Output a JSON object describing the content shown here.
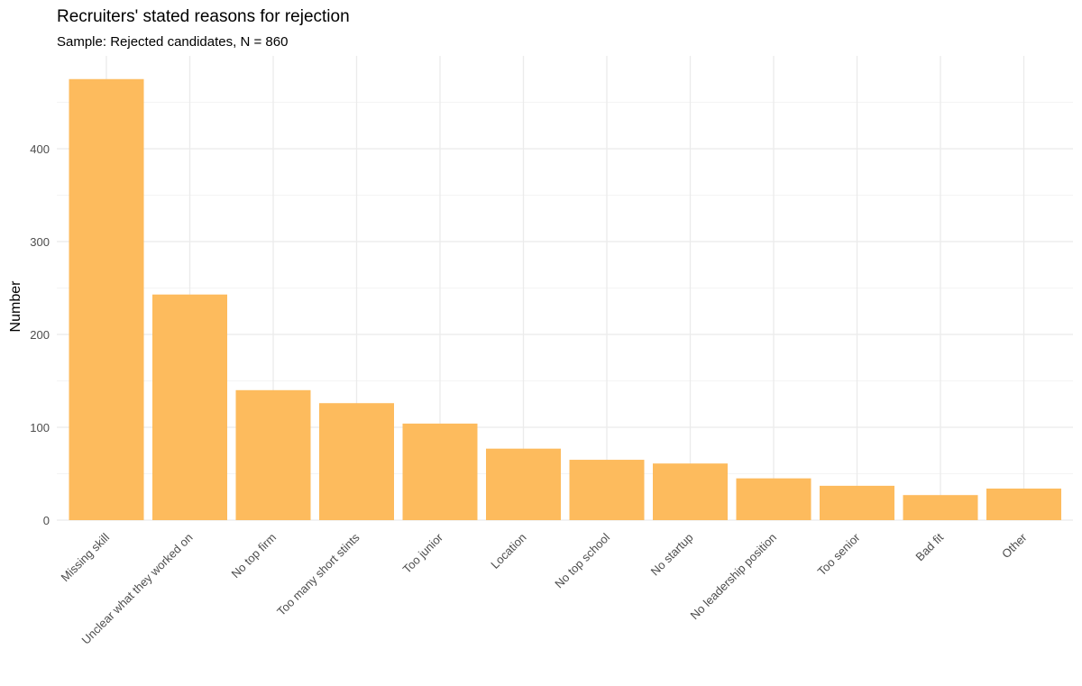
{
  "chart_data": {
    "type": "bar",
    "title": "Recruiters' stated reasons for rejection",
    "subtitle": "Sample: Rejected candidates, N = 860",
    "xlabel": "",
    "ylabel": "Number",
    "categories": [
      "Missing skill",
      "Unclear what they worked on",
      "No top firm",
      "Too many short stints",
      "Too junior",
      "Location",
      "No top school",
      "No startup",
      "No leadership position",
      "Too senior",
      "Bad fit",
      "Other"
    ],
    "values": [
      475,
      243,
      140,
      126,
      104,
      77,
      65,
      61,
      45,
      37,
      27,
      34
    ],
    "yticks": [
      0,
      100,
      200,
      300,
      400
    ],
    "ylim": [
      0,
      500
    ],
    "grid": true,
    "bar_color": "#FDBB5D"
  }
}
